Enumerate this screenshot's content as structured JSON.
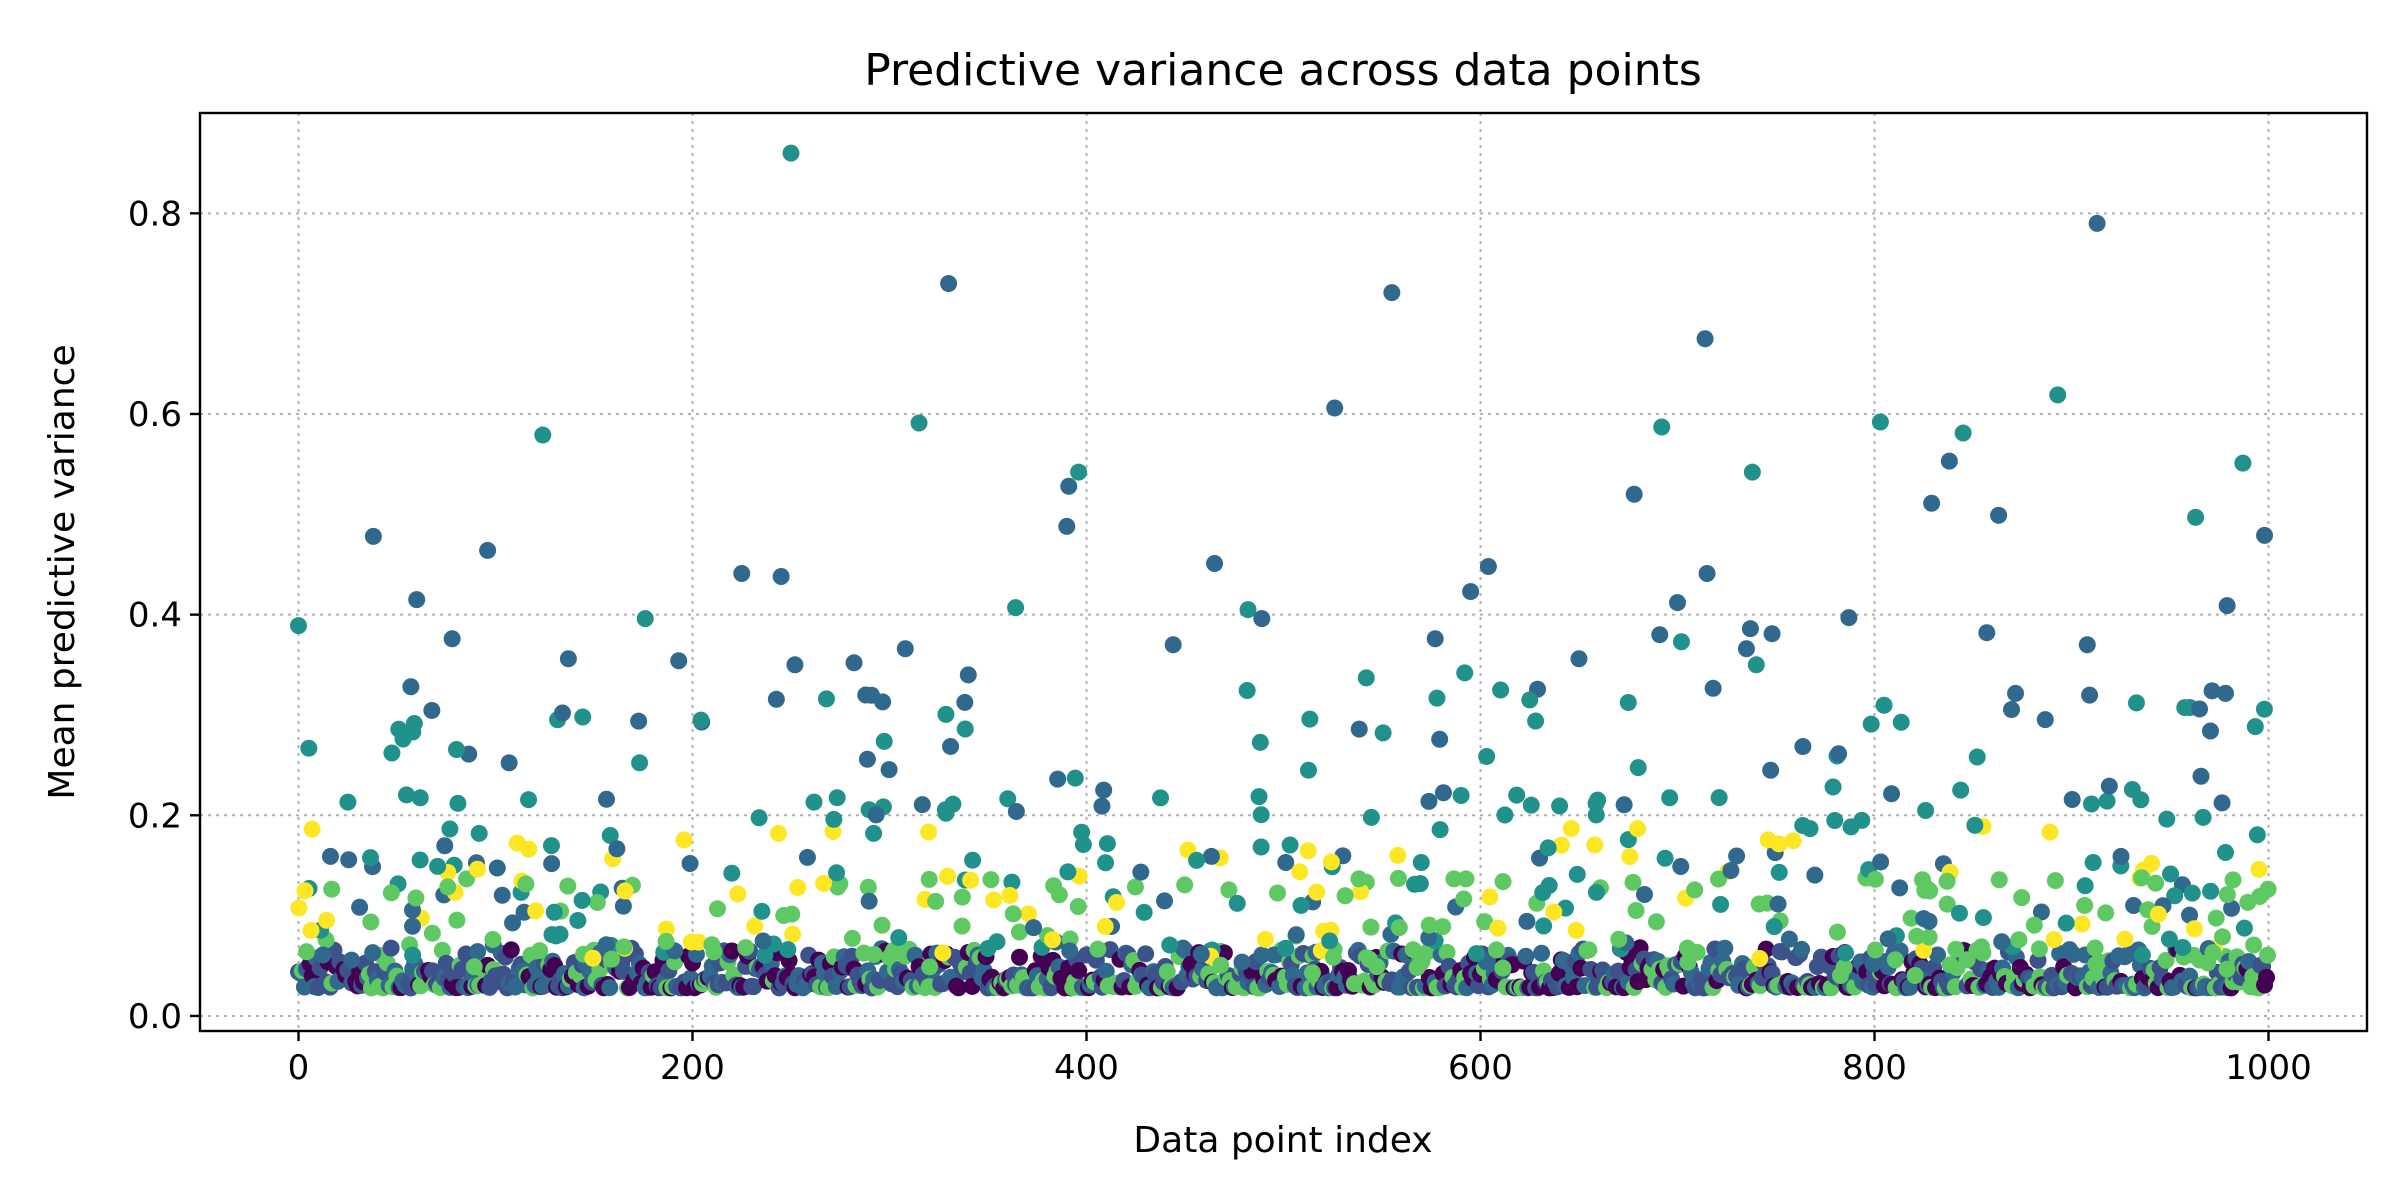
{
  "chart_data": {
    "type": "scatter",
    "title": "Predictive variance across data points",
    "xlabel": "Data point index",
    "ylabel": "Mean predictive variance",
    "xlim": [
      -50,
      1050
    ],
    "ylim": [
      -0.015,
      0.9
    ],
    "xticks": [
      0,
      200,
      400,
      600,
      800,
      1000
    ],
    "yticks": [
      0.0,
      0.2,
      0.4,
      0.6,
      0.8
    ],
    "ytick_labels": [
      "0.0",
      "0.2",
      "0.4",
      "0.6",
      "0.8"
    ],
    "grid": true,
    "colormap": "viridis",
    "palette": {
      "dark_purple": "#440154",
      "navy": "#3b528b",
      "blue_teal": "#31688e",
      "teal": "#21918c",
      "green": "#5ec962",
      "yellow": "#fde725"
    },
    "highlighted_points": [
      {
        "x": 0,
        "y": 0.389
      },
      {
        "x": 38,
        "y": 0.478
      },
      {
        "x": 60,
        "y": 0.415
      },
      {
        "x": 58,
        "y": 0.283
      },
      {
        "x": 78,
        "y": 0.376
      },
      {
        "x": 96,
        "y": 0.464
      },
      {
        "x": 124,
        "y": 0.579
      },
      {
        "x": 137,
        "y": 0.356
      },
      {
        "x": 134,
        "y": 0.302
      },
      {
        "x": 176,
        "y": 0.396
      },
      {
        "x": 193,
        "y": 0.354
      },
      {
        "x": 225,
        "y": 0.441
      },
      {
        "x": 250,
        "y": 0.86
      },
      {
        "x": 245,
        "y": 0.438
      },
      {
        "x": 252,
        "y": 0.35
      },
      {
        "x": 268,
        "y": 0.316
      },
      {
        "x": 282,
        "y": 0.352
      },
      {
        "x": 308,
        "y": 0.366
      },
      {
        "x": 315,
        "y": 0.591
      },
      {
        "x": 330,
        "y": 0.73
      },
      {
        "x": 340,
        "y": 0.34
      },
      {
        "x": 364,
        "y": 0.407
      },
      {
        "x": 390,
        "y": 0.488
      },
      {
        "x": 391,
        "y": 0.528
      },
      {
        "x": 396,
        "y": 0.542
      },
      {
        "x": 444,
        "y": 0.37
      },
      {
        "x": 465,
        "y": 0.451
      },
      {
        "x": 482,
        "y": 0.405
      },
      {
        "x": 489,
        "y": 0.396
      },
      {
        "x": 526,
        "y": 0.606
      },
      {
        "x": 542,
        "y": 0.337
      },
      {
        "x": 555,
        "y": 0.721
      },
      {
        "x": 577,
        "y": 0.376
      },
      {
        "x": 592,
        "y": 0.342
      },
      {
        "x": 595,
        "y": 0.423
      },
      {
        "x": 604,
        "y": 0.448
      },
      {
        "x": 625,
        "y": 0.315
      },
      {
        "x": 650,
        "y": 0.356
      },
      {
        "x": 678,
        "y": 0.52
      },
      {
        "x": 692,
        "y": 0.587
      },
      {
        "x": 691,
        "y": 0.38
      },
      {
        "x": 700,
        "y": 0.412
      },
      {
        "x": 702,
        "y": 0.373
      },
      {
        "x": 714,
        "y": 0.675
      },
      {
        "x": 715,
        "y": 0.441
      },
      {
        "x": 738,
        "y": 0.542
      },
      {
        "x": 735,
        "y": 0.366
      },
      {
        "x": 737,
        "y": 0.386
      },
      {
        "x": 740,
        "y": 0.35
      },
      {
        "x": 748,
        "y": 0.381
      },
      {
        "x": 787,
        "y": 0.397
      },
      {
        "x": 803,
        "y": 0.592
      },
      {
        "x": 829,
        "y": 0.511
      },
      {
        "x": 838,
        "y": 0.553
      },
      {
        "x": 845,
        "y": 0.581
      },
      {
        "x": 857,
        "y": 0.382
      },
      {
        "x": 863,
        "y": 0.499
      },
      {
        "x": 893,
        "y": 0.619
      },
      {
        "x": 908,
        "y": 0.37
      },
      {
        "x": 913,
        "y": 0.79
      },
      {
        "x": 963,
        "y": 0.497
      },
      {
        "x": 965,
        "y": 0.306
      },
      {
        "x": 979,
        "y": 0.409
      },
      {
        "x": 987,
        "y": 0.551
      },
      {
        "x": 998,
        "y": 0.479
      }
    ],
    "n_points": 1000,
    "baseline_range": [
      0.025,
      0.22
    ]
  }
}
